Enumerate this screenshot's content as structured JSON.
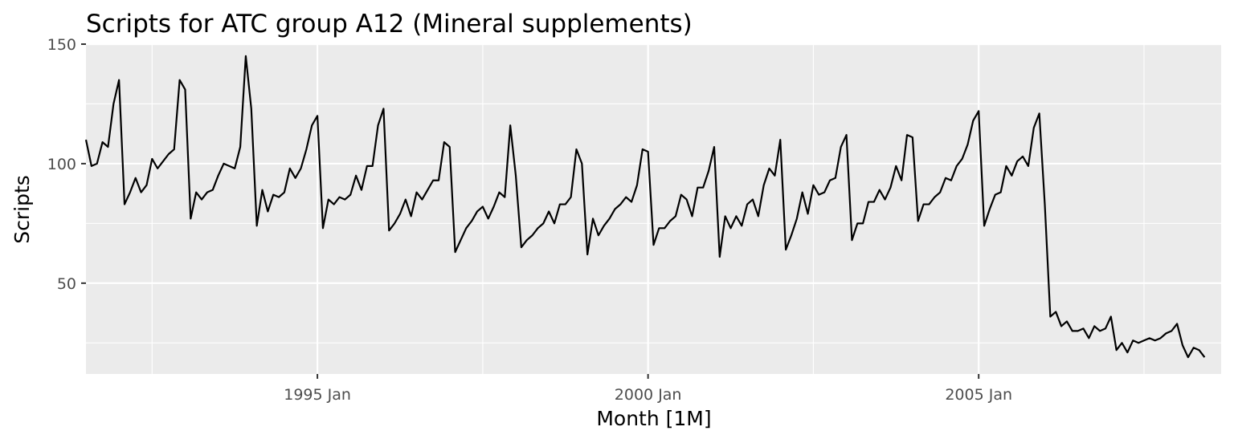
{
  "chart_data": {
    "type": "line",
    "title": "Scripts for ATC group A12 (Mineral supplements)",
    "xlabel": "Month [1M]",
    "ylabel": "Scripts",
    "xlim": [
      "1991-07",
      "2008-09"
    ],
    "ylim": [
      12,
      150
    ],
    "y_ticks": [
      50,
      100,
      150
    ],
    "x_ticks": [
      {
        "value": "1995-01",
        "label": "1995 Jan"
      },
      {
        "value": "2000-01",
        "label": "2000 Jan"
      },
      {
        "value": "2005-01",
        "label": "2005 Jan"
      }
    ],
    "grid": true,
    "colors": {
      "panel": "#ebebeb",
      "grid": "#ffffff",
      "line": "#000000",
      "tick_text": "#4d4d4d",
      "text": "#000000"
    },
    "series": [
      {
        "x": [
          "1991-07",
          "1991-08",
          "1991-09",
          "1991-10",
          "1991-11",
          "1991-12",
          "1992-01",
          "1992-02",
          "1992-03",
          "1992-04",
          "1992-05",
          "1992-06",
          "1992-07",
          "1992-08",
          "1992-09",
          "1992-10",
          "1992-11",
          "1992-12",
          "1993-01",
          "1993-02",
          "1993-03",
          "1993-04",
          "1993-05",
          "1993-06",
          "1993-07",
          "1993-08",
          "1993-09",
          "1993-10",
          "1993-11",
          "1993-12",
          "1994-01",
          "1994-02",
          "1994-03",
          "1994-04",
          "1994-05",
          "1994-06",
          "1994-07",
          "1994-08",
          "1994-09",
          "1994-10",
          "1994-11",
          "1994-12",
          "1995-01",
          "1995-02",
          "1995-03",
          "1995-04",
          "1995-05",
          "1995-06",
          "1995-07",
          "1995-08",
          "1995-09",
          "1995-10",
          "1995-11",
          "1995-12",
          "1996-01",
          "1996-02",
          "1996-03",
          "1996-04",
          "1996-05",
          "1996-06",
          "1996-07",
          "1996-08",
          "1996-09",
          "1996-10",
          "1996-11",
          "1996-12",
          "1997-01",
          "1997-02",
          "1997-03",
          "1997-04",
          "1997-05",
          "1997-06",
          "1997-07",
          "1997-08",
          "1997-09",
          "1997-10",
          "1997-11",
          "1997-12",
          "1998-01",
          "1998-02",
          "1998-03",
          "1998-04",
          "1998-05",
          "1998-06",
          "1998-07",
          "1998-08",
          "1998-09",
          "1998-10",
          "1998-11",
          "1998-12",
          "1999-01",
          "1999-02",
          "1999-03",
          "1999-04",
          "1999-05",
          "1999-06",
          "1999-07",
          "1999-08",
          "1999-09",
          "1999-10",
          "1999-11",
          "1999-12",
          "2000-01",
          "2000-02",
          "2000-03",
          "2000-04",
          "2000-05",
          "2000-06",
          "2000-07",
          "2000-08",
          "2000-09",
          "2000-10",
          "2000-11",
          "2000-12",
          "2001-01",
          "2001-02",
          "2001-03",
          "2001-04",
          "2001-05",
          "2001-06",
          "2001-07",
          "2001-08",
          "2001-09",
          "2001-10",
          "2001-11",
          "2001-12",
          "2002-01",
          "2002-02",
          "2002-03",
          "2002-04",
          "2002-05",
          "2002-06",
          "2002-07",
          "2002-08",
          "2002-09",
          "2002-10",
          "2002-11",
          "2002-12",
          "2003-01",
          "2003-02",
          "2003-03",
          "2003-04",
          "2003-05",
          "2003-06",
          "2003-07",
          "2003-08",
          "2003-09",
          "2003-10",
          "2003-11",
          "2003-12",
          "2004-01",
          "2004-02",
          "2004-03",
          "2004-04",
          "2004-05",
          "2004-06",
          "2004-07",
          "2004-08",
          "2004-09",
          "2004-10",
          "2004-11",
          "2004-12",
          "2005-01",
          "2005-02",
          "2005-03",
          "2005-04",
          "2005-05",
          "2005-06",
          "2005-07",
          "2005-08",
          "2005-09",
          "2005-10",
          "2005-11",
          "2005-12",
          "2006-01",
          "2006-02",
          "2006-03",
          "2006-04",
          "2006-05",
          "2006-06",
          "2006-07",
          "2006-08",
          "2006-09",
          "2006-10",
          "2006-11",
          "2006-12",
          "2007-01",
          "2007-02",
          "2007-03",
          "2007-04",
          "2007-05",
          "2007-06",
          "2007-07",
          "2007-08",
          "2007-09",
          "2007-10",
          "2007-11",
          "2007-12",
          "2008-01",
          "2008-02",
          "2008-03",
          "2008-04",
          "2008-05",
          "2008-06"
        ],
        "values": [
          110,
          99,
          100,
          109,
          107,
          125,
          135,
          83,
          88,
          94,
          88,
          91,
          102,
          98,
          101,
          104,
          106,
          135,
          131,
          77,
          88,
          85,
          88,
          89,
          95,
          100,
          99,
          98,
          107,
          145,
          123,
          74,
          89,
          80,
          87,
          86,
          88,
          98,
          94,
          98,
          106,
          116,
          120,
          73,
          85,
          83,
          86,
          85,
          87,
          95,
          89,
          99,
          99,
          116,
          123,
          72,
          75,
          79,
          85,
          78,
          88,
          85,
          89,
          93,
          93,
          109,
          107,
          63,
          68,
          73,
          76,
          80,
          82,
          77,
          82,
          88,
          86,
          116,
          95,
          65,
          68,
          70,
          73,
          75,
          80,
          75,
          83,
          83,
          86,
          106,
          100,
          62,
          77,
          70,
          74,
          77,
          81,
          83,
          86,
          84,
          91,
          106,
          105,
          66,
          73,
          73,
          76,
          78,
          87,
          85,
          78,
          90,
          90,
          97,
          107,
          61,
          78,
          73,
          78,
          74,
          83,
          85,
          78,
          91,
          98,
          95,
          110,
          64,
          70,
          77,
          88,
          79,
          91,
          87,
          88,
          93,
          94,
          107,
          112,
          68,
          75,
          75,
          84,
          84,
          89,
          85,
          90,
          99,
          93,
          112,
          111,
          76,
          83,
          83,
          86,
          88,
          94,
          93,
          99,
          102,
          108,
          118,
          122,
          74,
          81,
          87,
          88,
          99,
          95,
          101,
          103,
          99,
          115,
          121,
          83,
          36,
          38,
          32,
          34,
          30,
          30,
          31,
          27,
          32,
          30,
          31,
          36,
          22,
          25,
          21,
          26,
          25,
          26,
          27,
          26,
          27,
          29,
          30,
          33,
          24,
          19,
          23,
          22,
          19
        ]
      }
    ]
  }
}
